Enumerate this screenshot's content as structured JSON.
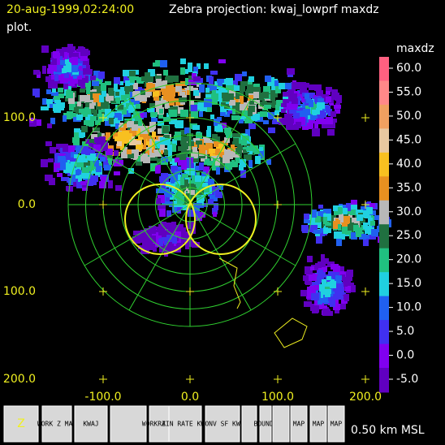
{
  "header": {
    "timestamp": "20-aug-1999,02:24:00",
    "title": "Zebra projection: kwaj_lowprf maxdz",
    "title_cont": "plot."
  },
  "axes": {
    "x_labels": [
      "-100.0",
      "0.0",
      "100.0",
      "200.0"
    ],
    "y_labels": [
      "100.0",
      "0.0",
      "100.0",
      "200.0"
    ]
  },
  "colorbar": {
    "field": "maxdz",
    "labels": [
      "60.0",
      "55.0",
      "50.0",
      "45.0",
      "40.0",
      "35.0",
      "30.0",
      "25.0",
      "20.0",
      "15.0",
      "10.0",
      "5.0",
      "0.0",
      "-5.0"
    ],
    "colors": [
      "#ff6080",
      "#ff8888",
      "#f0a060",
      "#e8c8a0",
      "#f8c020",
      "#e89020",
      "#b8b8b8",
      "#207040",
      "#20c080",
      "#20d0e0",
      "#2060f0",
      "#4030f0",
      "#8000f0",
      "#6000c0"
    ]
  },
  "toolbar": {
    "buttons": [
      "Z",
      "WORK Z MAP",
      "KWAJ",
      "WORK Z MAP",
      "RAIN RATE KWAJ",
      "CONV SF KWA",
      "BOUNDS",
      "MAP",
      "MAP",
      "MAP"
    ],
    "altitude": "0.50 km MSL"
  }
}
